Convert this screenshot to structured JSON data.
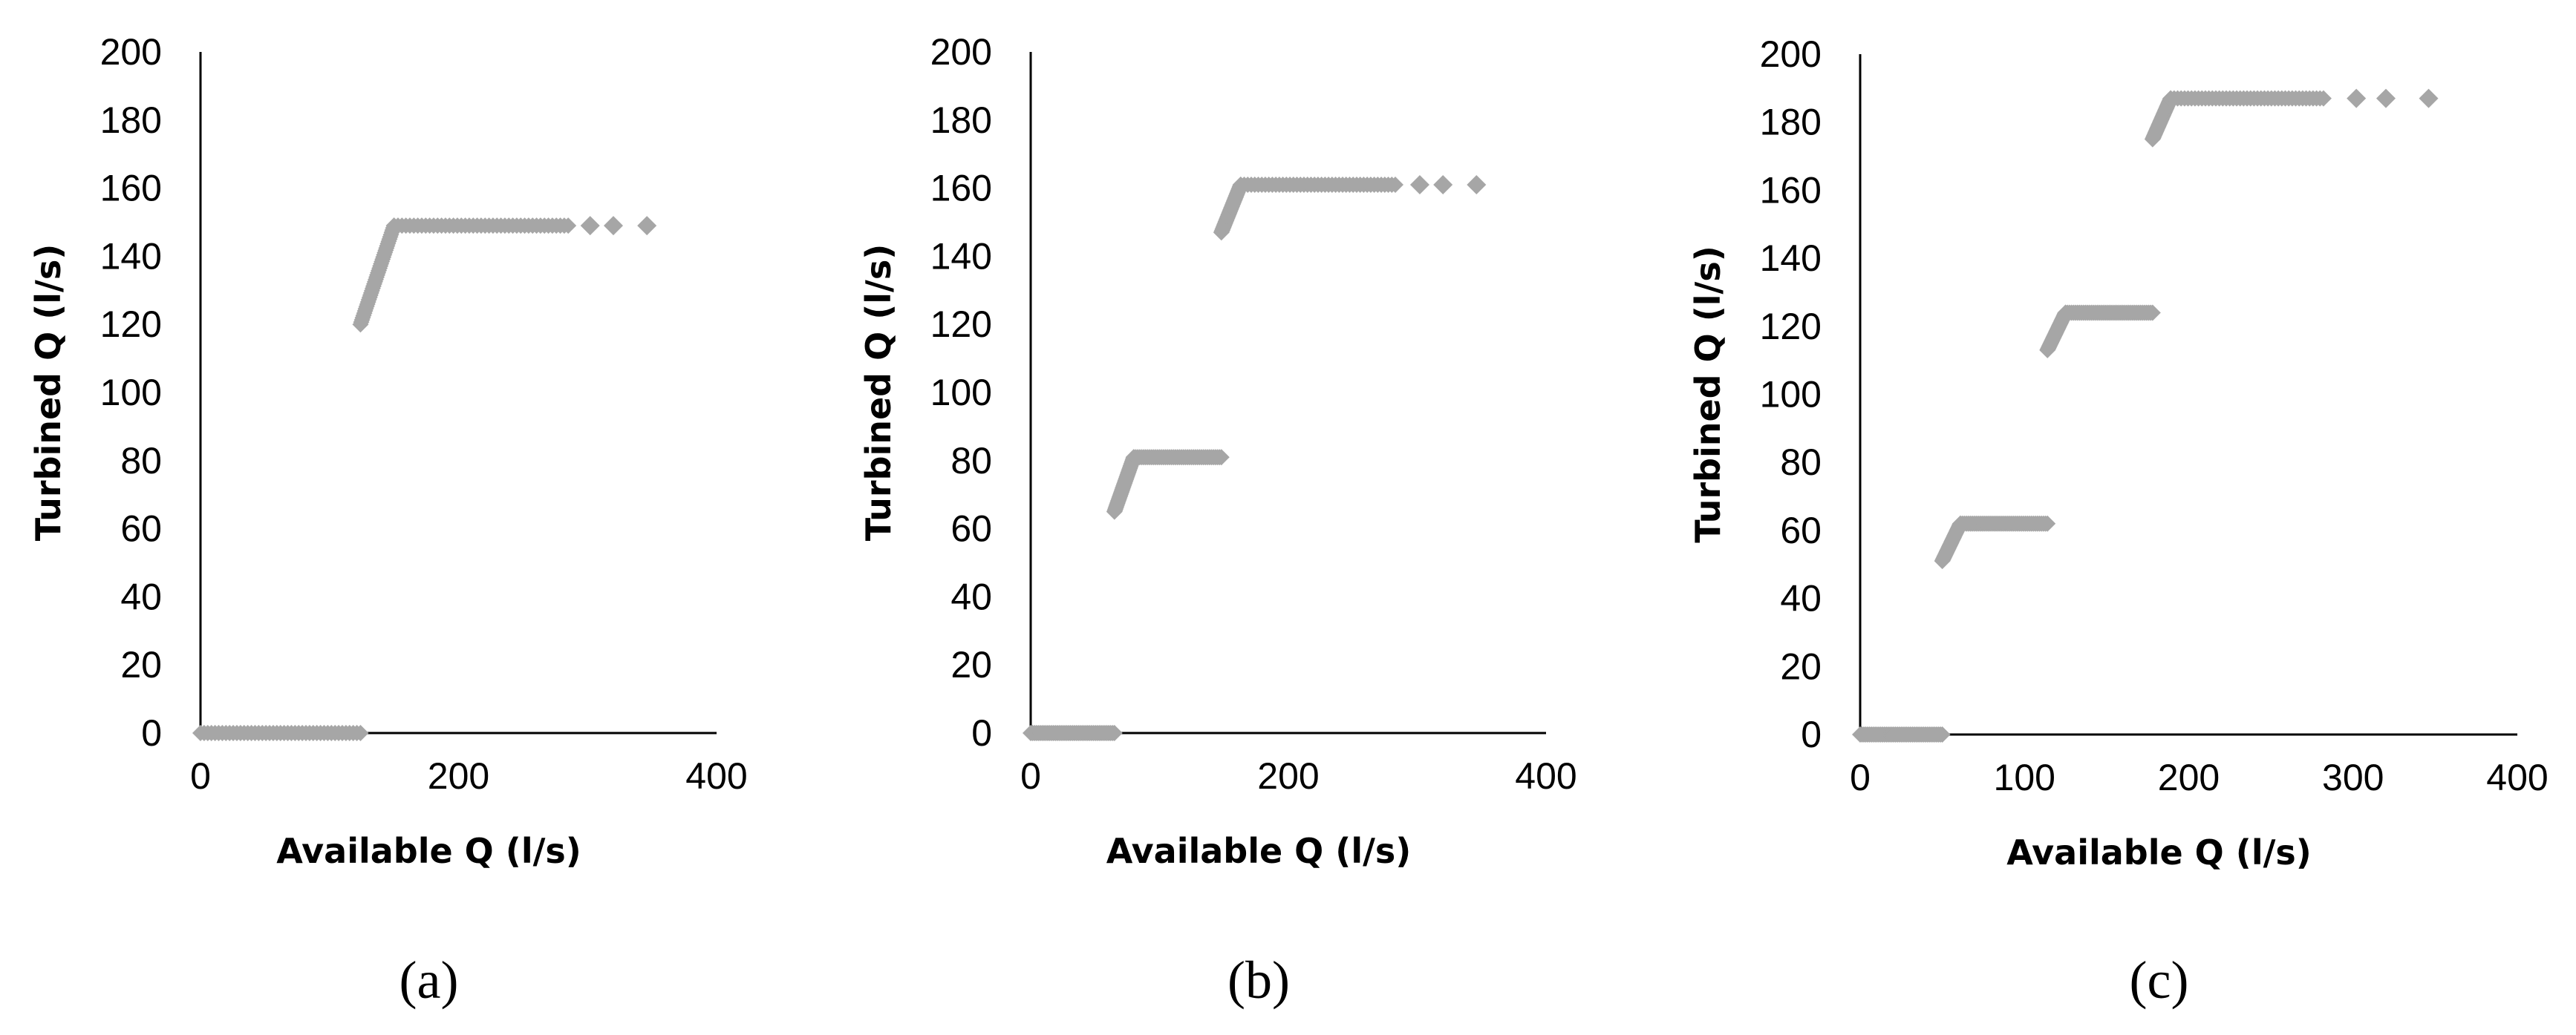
{
  "chart_data": [
    {
      "type": "scatter",
      "panel_label": "(a)",
      "xlabel": "Available Q (l/s)",
      "ylabel": "Turbined Q (l/s)",
      "xlim": [
        0,
        400
      ],
      "ylim": [
        0,
        200
      ],
      "xticks": [
        0,
        200,
        400
      ],
      "yticks": [
        0,
        20,
        40,
        60,
        80,
        100,
        120,
        140,
        160,
        180,
        200
      ],
      "grid": false,
      "series": [
        {
          "color": "#a6a6a6",
          "marker": "diamond",
          "segments": [
            {
              "x": [
                0,
                124
              ],
              "y": [
                0,
                0
              ]
            },
            {
              "x": [
                124,
                150
              ],
              "y": [
                120,
                149
              ]
            },
            {
              "x": [
                150,
                285
              ],
              "y": [
                149,
                149
              ]
            }
          ],
          "points": [
            {
              "x": 302,
              "y": 149
            },
            {
              "x": 320,
              "y": 149
            },
            {
              "x": 346,
              "y": 149
            }
          ]
        }
      ]
    },
    {
      "type": "scatter",
      "panel_label": "(b)",
      "xlabel": "Available Q (l/s)",
      "ylabel": "Turbined Q (l/s)",
      "xlim": [
        0,
        400
      ],
      "ylim": [
        0,
        200
      ],
      "xticks": [
        0,
        200,
        400
      ],
      "yticks": [
        0,
        20,
        40,
        60,
        80,
        100,
        120,
        140,
        160,
        180,
        200
      ],
      "grid": false,
      "series": [
        {
          "color": "#a6a6a6",
          "marker": "diamond",
          "segments": [
            {
              "x": [
                0,
                65
              ],
              "y": [
                0,
                0
              ]
            },
            {
              "x": [
                65,
                80
              ],
              "y": [
                65,
                81
              ]
            },
            {
              "x": [
                80,
                148
              ],
              "y": [
                81,
                81
              ]
            },
            {
              "x": [
                148,
                163
              ],
              "y": [
                147,
                161
              ]
            },
            {
              "x": [
                163,
                283
              ],
              "y": [
                161,
                161
              ]
            }
          ],
          "points": [
            {
              "x": 302,
              "y": 161
            },
            {
              "x": 320,
              "y": 161
            },
            {
              "x": 346,
              "y": 161
            }
          ]
        }
      ]
    },
    {
      "type": "scatter",
      "panel_label": "(c)",
      "xlabel": "Available Q (l/s)",
      "ylabel": "Turbined Q (l/s)",
      "xlim": [
        0,
        400
      ],
      "ylim": [
        0,
        200
      ],
      "xticks": [
        0,
        100,
        200,
        300,
        400
      ],
      "yticks": [
        0,
        20,
        40,
        60,
        80,
        100,
        120,
        140,
        160,
        180,
        200
      ],
      "grid": false,
      "series": [
        {
          "color": "#a6a6a6",
          "marker": "diamond",
          "segments": [
            {
              "x": [
                0,
                50
              ],
              "y": [
                0,
                0
              ]
            },
            {
              "x": [
                50,
                61
              ],
              "y": [
                51,
                62
              ]
            },
            {
              "x": [
                61,
                114
              ],
              "y": [
                62,
                62
              ]
            },
            {
              "x": [
                114,
                125
              ],
              "y": [
                113,
                124
              ]
            },
            {
              "x": [
                125,
                178
              ],
              "y": [
                124,
                124
              ]
            },
            {
              "x": [
                178,
                189
              ],
              "y": [
                175,
                187
              ]
            },
            {
              "x": [
                189,
                282
              ],
              "y": [
                187,
                187
              ]
            }
          ],
          "points": [
            {
              "x": 302,
              "y": 187
            },
            {
              "x": 320,
              "y": 187
            },
            {
              "x": 346,
              "y": 187
            }
          ]
        }
      ]
    }
  ]
}
